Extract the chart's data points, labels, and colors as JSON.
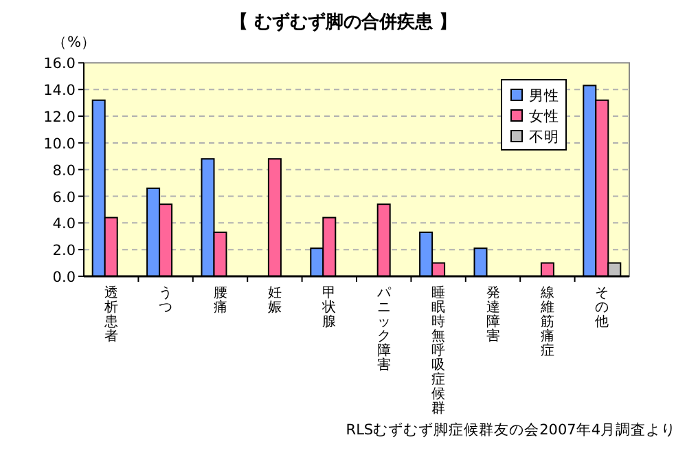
{
  "chart_data": {
    "type": "bar",
    "title": "【 むずむず脚の合併疾患 】",
    "ylabel": "（%）",
    "categories": [
      "透析患者",
      "うつ",
      "腰痛",
      "妊娠",
      "甲状腺",
      "パニック障害",
      "睡眠時無呼吸症候群",
      "発達障害",
      "線維筋痛症",
      "その他"
    ],
    "series": [
      {
        "name": "男性",
        "color": "#6699ff",
        "values": [
          13.2,
          6.6,
          8.8,
          null,
          2.1,
          null,
          3.3,
          2.1,
          null,
          14.3
        ]
      },
      {
        "name": "女性",
        "color": "#ff6699",
        "values": [
          4.4,
          5.4,
          3.3,
          8.8,
          4.4,
          5.4,
          1.0,
          null,
          1.0,
          13.2
        ]
      },
      {
        "name": "不明",
        "color": "#c0c0c0",
        "values": [
          null,
          null,
          null,
          null,
          null,
          null,
          null,
          null,
          null,
          1.0
        ]
      }
    ],
    "ylim": [
      0,
      16
    ],
    "yticks": [
      {
        "value": 0,
        "label": "0.0"
      },
      {
        "value": 2,
        "label": "2.0"
      },
      {
        "value": 4,
        "label": "4.0"
      },
      {
        "value": 6,
        "label": "6.0"
      },
      {
        "value": 8,
        "label": "8.0"
      },
      {
        "value": 10,
        "label": "10.0"
      },
      {
        "value": 12,
        "label": "12.0"
      },
      {
        "value": 14,
        "label": "14.0"
      },
      {
        "value": 16,
        "label": "16.0"
      }
    ],
    "grid": "y",
    "legend": "top right",
    "annotations": [
      "RLSむずむず脚症候群友の会2007年4月調査より"
    ]
  }
}
